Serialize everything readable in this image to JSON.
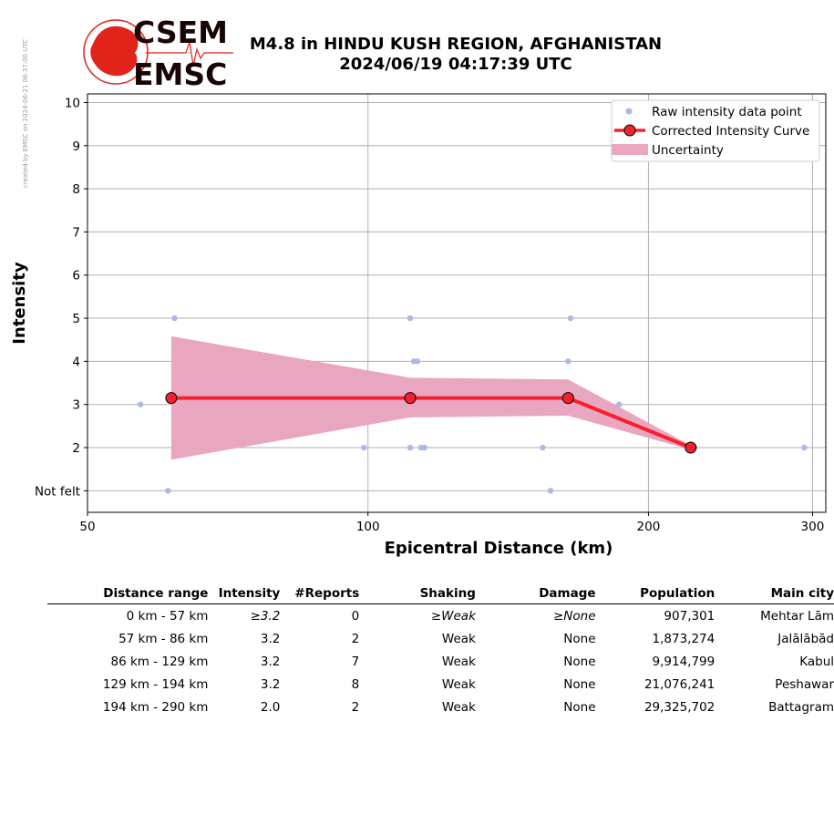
{
  "side_note": "created by EMSC on 2024-06-21 06:37:00 UTC",
  "logo": {
    "top": "CSEM",
    "bottom": "EMSC",
    "color": "#e2231a"
  },
  "title": {
    "line1": "M4.8 in HINDU KUSH REGION, AFGHANISTAN",
    "line2": "2024/06/19 04:17:39 UTC"
  },
  "chart_data": {
    "type": "scatter",
    "xlabel": "Epicentral Distance (km)",
    "ylabel": "Intensity",
    "x_scale": "log",
    "xlim": [
      50,
      310
    ],
    "ylim": [
      0.5,
      10.2
    ],
    "x_ticks": [
      50,
      100,
      200,
      300
    ],
    "y_ticks": [
      1,
      2,
      3,
      4,
      5,
      6,
      7,
      8,
      9,
      10
    ],
    "y_tick_labels": [
      "Not felt",
      "2",
      "3",
      "4",
      "5",
      "6",
      "7",
      "8",
      "9",
      "10"
    ],
    "grid": true,
    "legend_position": "top-right",
    "legend": {
      "raw": "Raw intensity data point",
      "curve": "Corrected Intensity Curve",
      "uncertainty": "Uncertainty"
    },
    "colors": {
      "raw": "#aab9e8",
      "curve": "#f5222d",
      "uncertainty": "#e8a6c0",
      "marker_edge": "#000000"
    },
    "raw_points": [
      {
        "x": 57,
        "y": 3
      },
      {
        "x": 61,
        "y": 1
      },
      {
        "x": 62,
        "y": 5
      },
      {
        "x": 99,
        "y": 2
      },
      {
        "x": 111,
        "y": 5
      },
      {
        "x": 111,
        "y": 2
      },
      {
        "x": 112,
        "y": 4
      },
      {
        "x": 113,
        "y": 4
      },
      {
        "x": 114,
        "y": 2
      },
      {
        "x": 115,
        "y": 2
      },
      {
        "x": 154,
        "y": 2
      },
      {
        "x": 157,
        "y": 1
      },
      {
        "x": 164,
        "y": 4
      },
      {
        "x": 165,
        "y": 5
      },
      {
        "x": 186,
        "y": 3
      },
      {
        "x": 224,
        "y": 2
      },
      {
        "x": 294,
        "y": 2
      }
    ],
    "curve": [
      {
        "x": 61.5,
        "y": 3.15
      },
      {
        "x": 111,
        "y": 3.15
      },
      {
        "x": 164,
        "y": 3.15
      },
      {
        "x": 222,
        "y": 2.0
      }
    ],
    "uncertainty": {
      "x": [
        61.5,
        111,
        164,
        222
      ],
      "upper": [
        4.58,
        3.62,
        3.58,
        2.05
      ],
      "lower": [
        1.72,
        2.7,
        2.74,
        1.95
      ]
    }
  },
  "table": {
    "headers": [
      "Distance range",
      "Intensity",
      "#Reports",
      "Shaking",
      "Damage",
      "Population",
      "Main city"
    ],
    "rows": [
      [
        "0 km -   57 km",
        "≥3.2",
        "0",
        "≥Weak",
        "≥None",
        "907,301",
        "Mehtar Lām"
      ],
      [
        "57 km -   86 km",
        "3.2",
        "2",
        "Weak",
        "None",
        "1,873,274",
        "Jalālābād"
      ],
      [
        "86 km -  129 km",
        "3.2",
        "7",
        "Weak",
        "None",
        "9,914,799",
        "Kabul"
      ],
      [
        "129 km -  194 km",
        "3.2",
        "8",
        "Weak",
        "None",
        "21,076,241",
        "Peshawar"
      ],
      [
        "194 km -  290 km",
        "2.0",
        "2",
        "Weak",
        "None",
        "29,325,702",
        "Battagram"
      ]
    ],
    "italic_row_index": 0
  }
}
